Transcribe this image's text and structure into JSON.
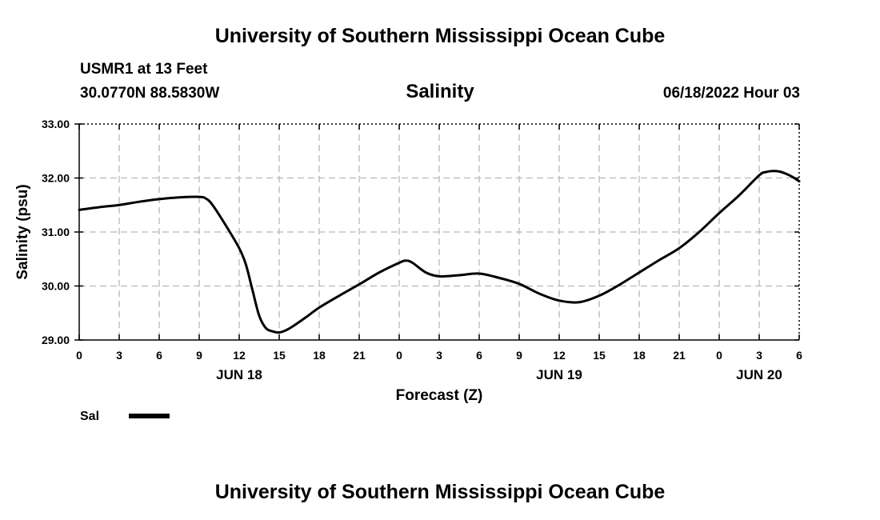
{
  "header": {
    "title": "University of Southern Mississippi Ocean Cube",
    "station": "USMR1 at 13 Feet",
    "coords": "30.0770N  88.5830W",
    "variable": "Salinity",
    "timestamp": "06/18/2022 Hour 03"
  },
  "footer": {
    "title": "University of Southern Mississippi Ocean Cube"
  },
  "colors": {
    "line": "#000000",
    "grid": "#b8b8b8",
    "background": "#ffffff"
  },
  "chart_data": {
    "type": "line",
    "title": "Salinity",
    "xlabel": "Forecast (Z)",
    "ylabel": "Salinity (psu)",
    "xlim": [
      0,
      54
    ],
    "ylim": [
      29.0,
      33.0
    ],
    "grid": true,
    "x_ticks": [
      0,
      3,
      6,
      9,
      12,
      15,
      18,
      21,
      24,
      27,
      30,
      33,
      36,
      39,
      42,
      45,
      48,
      51,
      54
    ],
    "x_tick_labels": [
      "0",
      "3",
      "6",
      "9",
      "12",
      "15",
      "18",
      "21",
      "0",
      "3",
      "6",
      "9",
      "12",
      "15",
      "18",
      "21",
      "0",
      "3",
      "6"
    ],
    "y_ticks": [
      29.0,
      30.0,
      31.0,
      32.0,
      33.0
    ],
    "y_tick_labels": [
      "29.00",
      "30.00",
      "31.00",
      "32.00",
      "33.00"
    ],
    "date_labels": [
      {
        "x": 12,
        "label": "JUN 18"
      },
      {
        "x": 36,
        "label": "JUN 19"
      },
      {
        "x": 51,
        "label": "JUN 20"
      }
    ],
    "legend": {
      "position": "bottom-left",
      "entries": [
        {
          "name": "Sal"
        }
      ]
    },
    "series": [
      {
        "name": "Sal",
        "x": [
          0,
          1.5,
          3,
          4.5,
          6,
          7.5,
          9,
          9.5,
          10,
          11,
          12,
          12.5,
          13,
          13.5,
          14,
          14.5,
          15,
          15.5,
          16,
          17,
          18,
          19.5,
          21,
          22.5,
          24,
          24.5,
          25,
          26,
          27,
          28.5,
          30,
          31.5,
          33,
          34.5,
          36,
          37.5,
          39,
          40.5,
          42,
          43.5,
          45,
          46.5,
          48,
          49.5,
          51,
          51.5,
          52,
          52.5,
          53,
          53.5,
          54
        ],
        "values": [
          31.41,
          31.46,
          31.5,
          31.56,
          31.61,
          31.64,
          31.65,
          31.62,
          31.5,
          31.12,
          30.7,
          30.4,
          29.92,
          29.45,
          29.22,
          29.16,
          29.14,
          29.18,
          29.25,
          29.42,
          29.6,
          29.82,
          30.03,
          30.25,
          30.43,
          30.47,
          30.43,
          30.25,
          30.18,
          30.2,
          30.23,
          30.15,
          30.04,
          29.86,
          29.73,
          29.7,
          29.82,
          30.02,
          30.25,
          30.48,
          30.7,
          31.0,
          31.35,
          31.68,
          32.05,
          32.11,
          32.13,
          32.12,
          32.08,
          32.02,
          31.94
        ]
      }
    ]
  }
}
